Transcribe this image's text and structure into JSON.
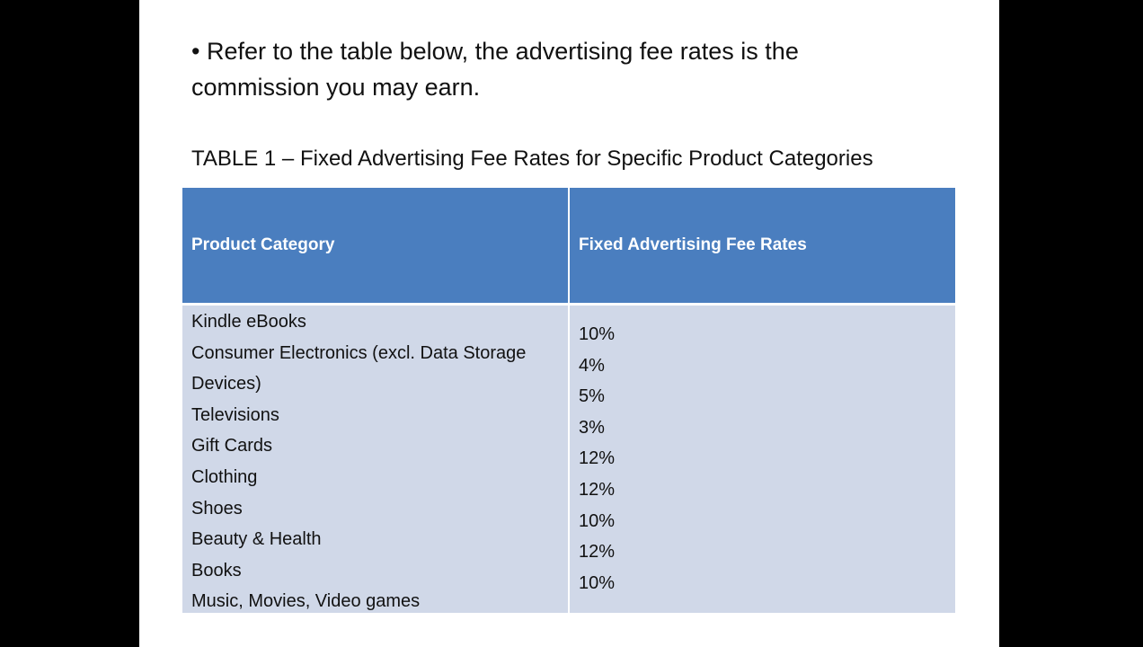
{
  "slide": {
    "text_lines": [
      "• Refer to the table below, the advertising fee rates is the",
      "commission you may earn."
    ],
    "table_title": "TABLE 1 – Fixed Advertising Fee Rates for Specific Product Categories",
    "table": {
      "headers": [
        "Product Category",
        "Fixed Advertising Fee Rates"
      ],
      "categories": [
        "Kindle eBooks",
        "Consumer Electronics (excl. Data Storage Devices)",
        "Televisions",
        "Gift Cards",
        "Clothing",
        "Shoes",
        "Beauty & Health",
        "Books",
        "Music, Movies, Video games"
      ],
      "rates": [
        "10%",
        "4%",
        "5%",
        "3%",
        "12%",
        "12%",
        "10%",
        "12%",
        "10%"
      ]
    }
  }
}
